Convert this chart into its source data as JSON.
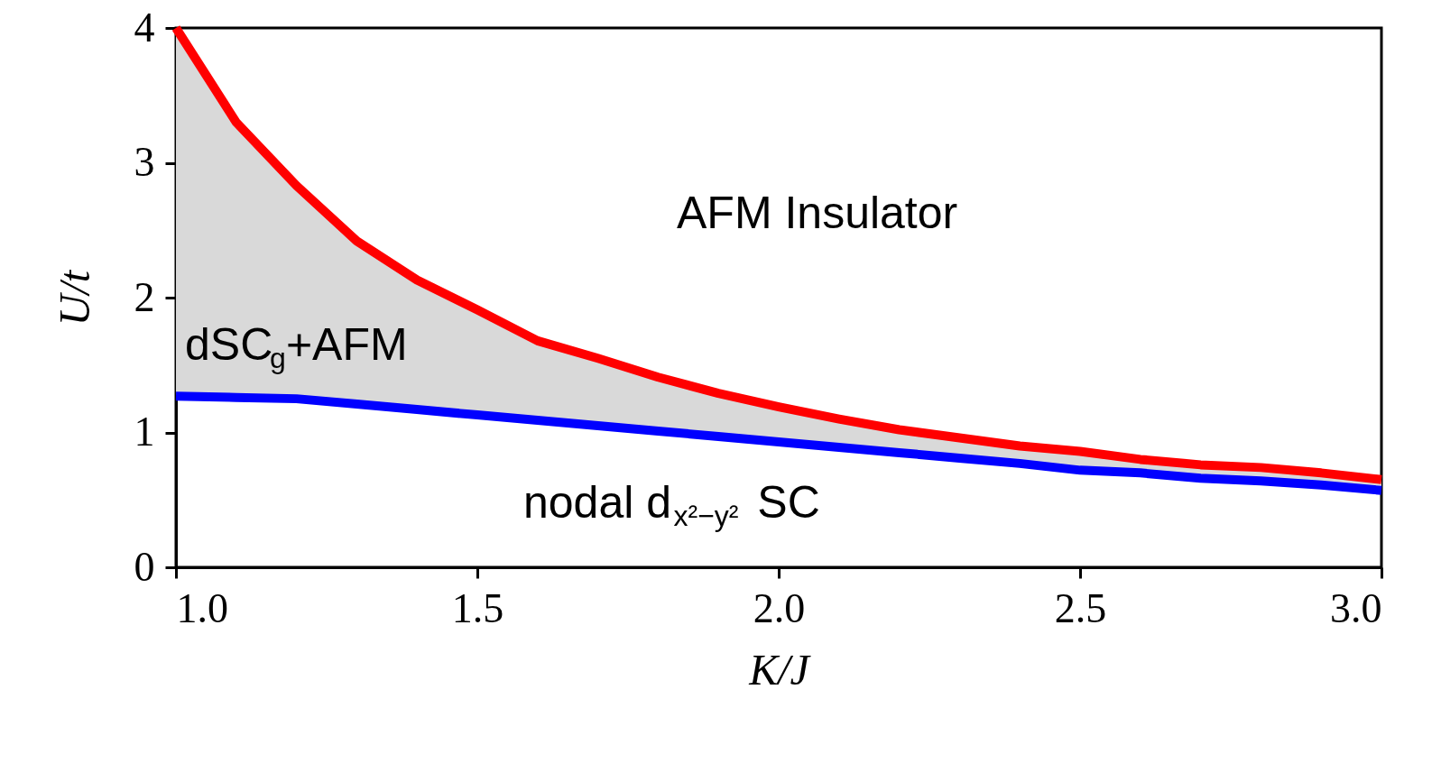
{
  "chart_data": {
    "type": "line",
    "xlabel": "K/J",
    "ylabel": "U/t",
    "x": [
      1.0,
      1.1,
      1.2,
      1.3,
      1.4,
      1.5,
      1.6,
      1.7,
      1.8,
      1.9,
      2.0,
      2.1,
      2.2,
      2.3,
      2.4,
      2.5,
      2.6,
      2.7,
      2.8,
      2.9,
      3.0
    ],
    "series": [
      {
        "color": "#ff0000",
        "values": [
          4.0,
          3.3,
          2.83,
          2.42,
          2.13,
          1.91,
          1.68,
          1.55,
          1.41,
          1.29,
          1.19,
          1.1,
          1.02,
          0.96,
          0.9,
          0.86,
          0.8,
          0.76,
          0.74,
          0.7,
          0.65
        ],
        "lower": [
          1.27,
          1.26,
          1.25,
          1.21,
          1.17,
          1.13,
          1.09,
          1.05,
          1.01,
          0.97,
          0.93,
          0.89,
          0.85,
          0.81,
          0.77,
          0.72,
          0.7,
          0.66,
          0.64,
          0.61,
          0.57
        ],
        "upper": [
          4.0,
          3.3,
          2.83,
          2.42,
          2.13,
          1.91,
          1.68,
          1.55,
          1.41,
          1.29,
          1.19,
          1.1,
          1.02,
          0.96,
          0.9,
          0.86,
          0.8,
          0.76,
          0.74,
          0.7,
          0.65
        ]
      },
      {
        "color": "#0000ff",
        "values": [
          1.27,
          1.26,
          1.25,
          1.21,
          1.17,
          1.13,
          1.09,
          1.05,
          1.01,
          0.97,
          0.93,
          0.89,
          0.85,
          0.81,
          0.77,
          0.72,
          0.7,
          0.66,
          0.64,
          0.61,
          0.57
        ]
      }
    ],
    "annotations": [
      "AFM Insulator",
      "dSC$_{g}$+AFM",
      "nodal d$_{x²−y²}$ SC"
    ],
    "xlim": [
      1.0,
      3.0
    ],
    "xticks": [
      {
        "value": 1.0,
        "label": "1.0"
      },
      {
        "value": 1.5,
        "label": "1.5"
      },
      {
        "value": 2.0,
        "label": "2.0"
      },
      {
        "value": 2.5,
        "label": "2.5"
      },
      {
        "value": 3.0,
        "label": "3.0"
      }
    ],
    "ylim": [
      0,
      4
    ],
    "yticks": [
      0,
      1,
      2,
      3,
      4
    ],
    "grid": false,
    "marker": "none",
    "line_style": "solid"
  }
}
